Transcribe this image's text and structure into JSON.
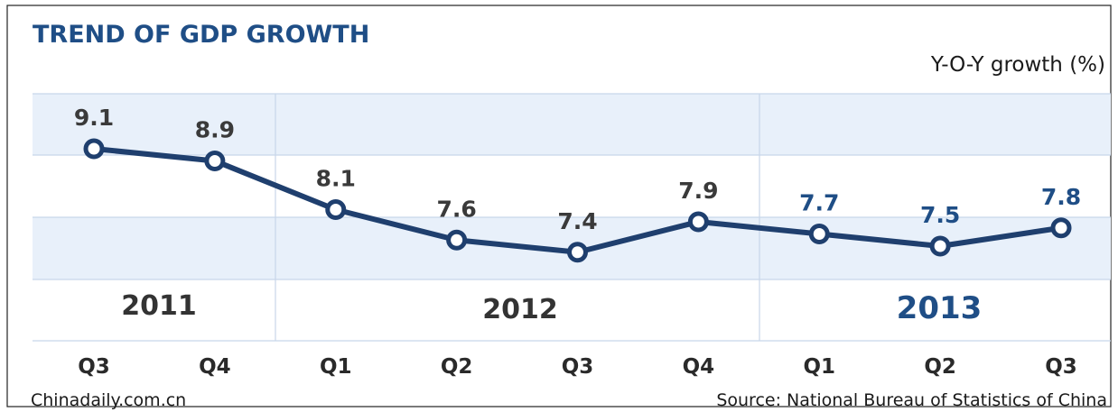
{
  "chart_data": {
    "type": "line",
    "title": "TREND OF GDP GROWTH",
    "ylabel": "Y-O-Y growth (%)",
    "categories": [
      "Q3",
      "Q4",
      "Q1",
      "Q2",
      "Q3",
      "Q4",
      "Q1",
      "Q2",
      "Q3"
    ],
    "years": [
      {
        "label": "2011",
        "span": [
          0,
          1
        ]
      },
      {
        "label": "2012",
        "span": [
          2,
          5
        ]
      },
      {
        "label": "2013",
        "span": [
          6,
          8
        ]
      }
    ],
    "series": [
      {
        "values": [
          9.1,
          8.9,
          8.1,
          7.6,
          7.4,
          7.9,
          7.7,
          7.5,
          7.8
        ],
        "color": "#1f3f6e"
      }
    ],
    "value_labels": [
      "9.1",
      "8.9",
      "8.1",
      "7.6",
      "7.4",
      "7.9",
      "7.7",
      "7.5",
      "7.8"
    ],
    "ylim": [
      6.0,
      9.5
    ],
    "grid": true,
    "highlight_year": "2013"
  },
  "footer": {
    "left": "Chinadaily.com.cn",
    "right": "Source: National Bureau of Statistics of China"
  },
  "colors": {
    "band": "#e8f0fa",
    "grid": "#c8d6ea",
    "label_dark": "#3a3a3a",
    "label_accent": "#1f4e86"
  }
}
